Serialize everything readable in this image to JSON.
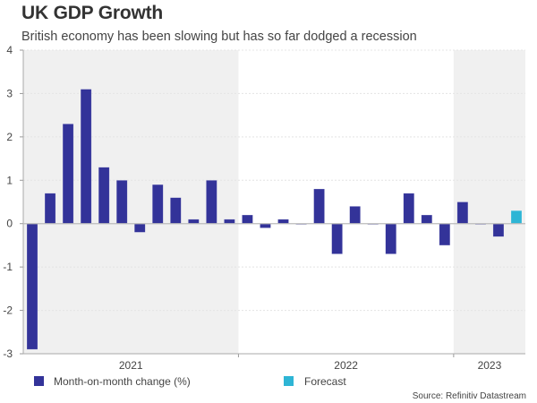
{
  "header": {
    "title": "UK GDP Growth",
    "subtitle": "British economy has been slowing but has so far dodged a recession"
  },
  "source": "Source: Refinitiv Datastream",
  "colors": {
    "actual": "#333399",
    "forecast": "#2eb5d5",
    "shade": "#f0f0f0",
    "axis": "#bbbbbb"
  },
  "chart_data": {
    "type": "bar",
    "title": "UK GDP Growth",
    "subtitle": "British economy has been slowing but has so far dodged a recession",
    "xlabel": "",
    "ylabel": "",
    "ylim": [
      -3,
      4
    ],
    "yticks": [
      4,
      3,
      2,
      1,
      0,
      -1,
      -2,
      -3
    ],
    "grid": true,
    "year_groups": [
      {
        "label": "2021",
        "count": 12,
        "shaded": true
      },
      {
        "label": "2022",
        "count": 12,
        "shaded": false
      },
      {
        "label": "2023",
        "count": 4,
        "shaded": true
      }
    ],
    "series": [
      {
        "name": "Month-on-month change (%)",
        "values": [
          -2.9,
          0.7,
          2.3,
          3.1,
          1.3,
          1.0,
          -0.2,
          0.9,
          0.6,
          0.1,
          1.0,
          0.1,
          0.2,
          -0.1,
          0.1,
          0.0,
          0.8,
          -0.7,
          0.4,
          0.0,
          -0.7,
          0.7,
          0.2,
          -0.5,
          0.5,
          0.0,
          -0.3,
          null
        ]
      },
      {
        "name": "Forecast",
        "values": [
          null,
          null,
          null,
          null,
          null,
          null,
          null,
          null,
          null,
          null,
          null,
          null,
          null,
          null,
          null,
          null,
          null,
          null,
          null,
          null,
          null,
          null,
          null,
          null,
          null,
          null,
          null,
          0.3
        ]
      }
    ],
    "legend": [
      "Month-on-month change (%)",
      "Forecast"
    ],
    "legend_position": "bottom"
  }
}
